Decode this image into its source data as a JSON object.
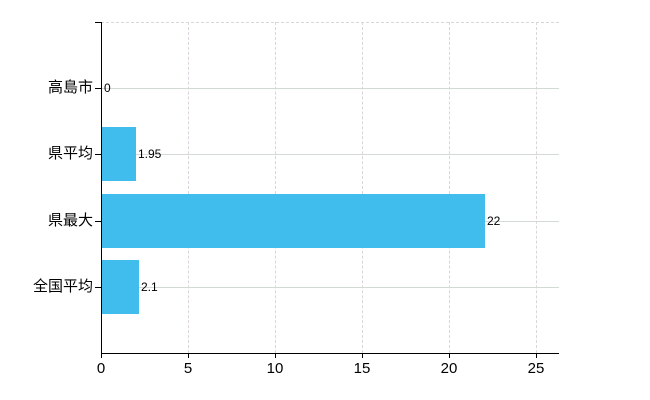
{
  "chart_data": {
    "type": "bar",
    "orientation": "horizontal",
    "title": "",
    "xlabel": "",
    "ylabel": "",
    "categories": [
      "高島市",
      "県平均",
      "県最大",
      "全国平均"
    ],
    "values": [
      0,
      1.95,
      22,
      2.1
    ],
    "value_labels": [
      "0",
      "1.95",
      "22",
      "2.1"
    ],
    "x_ticks": [
      0,
      5,
      10,
      15,
      20,
      25
    ],
    "x_tick_labels": [
      "0",
      "5",
      "10",
      "15",
      "20",
      "25"
    ],
    "xlim": [
      0,
      26.33
    ],
    "grid": true,
    "legend": false,
    "colors": {
      "bar": "#41bded",
      "grid_horizontal": "#d3d9d3",
      "grid_vertical": "#dcd4dc",
      "plot_top_border": "#d7d7d7",
      "axis": "#000000",
      "text": "#000000",
      "background": "#ffffff"
    }
  }
}
